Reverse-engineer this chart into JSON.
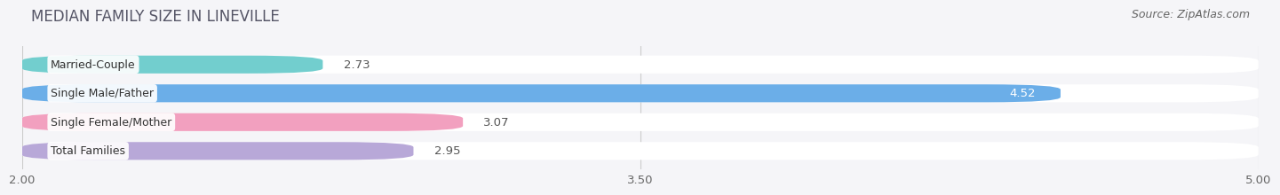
{
  "title": "MEDIAN FAMILY SIZE IN LINEVILLE",
  "source": "Source: ZipAtlas.com",
  "categories": [
    "Married-Couple",
    "Single Male/Father",
    "Single Female/Mother",
    "Total Families"
  ],
  "values": [
    2.73,
    4.52,
    3.07,
    2.95
  ],
  "bar_colors": [
    "#72cece",
    "#6baee8",
    "#f2a0bf",
    "#b8a8d8"
  ],
  "xlim_data": [
    2.0,
    5.0
  ],
  "xticks": [
    2.0,
    3.5,
    5.0
  ],
  "xtick_labels": [
    "2.00",
    "3.50",
    "5.00"
  ],
  "bar_height": 0.62,
  "background_color": "#f5f5f8",
  "row_bg_color": "#ececf2",
  "label_inside_color": "#ffffff",
  "label_outside_color": "#555555",
  "label_fontsize": 9.5,
  "title_fontsize": 12,
  "source_fontsize": 9,
  "tick_fontsize": 9.5,
  "cat_fontsize": 9,
  "value_threshold": 4.5,
  "grid_color": "#cccccc",
  "text_color": "#444444"
}
